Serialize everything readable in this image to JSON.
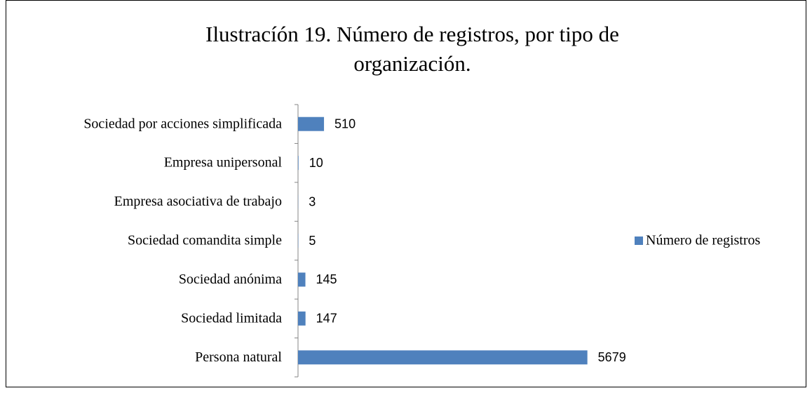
{
  "chart_data": {
    "type": "bar",
    "orientation": "horizontal",
    "title": "Ilustracíón 19. Número de registros, por tipo de organización.",
    "categories": [
      "Sociedad por acciones simplificada",
      "Empresa unipersonal",
      "Empresa asociativa de trabajo",
      "Sociedad comandita simple",
      "Sociedad anónima",
      "Sociedad limitada",
      "Persona natural"
    ],
    "series": [
      {
        "name": "Número de registros",
        "color": "#4f81bd",
        "values": [
          510,
          10,
          3,
          5,
          145,
          147,
          5679
        ]
      }
    ],
    "xlim": [
      0,
      6000
    ],
    "legend": "right"
  }
}
